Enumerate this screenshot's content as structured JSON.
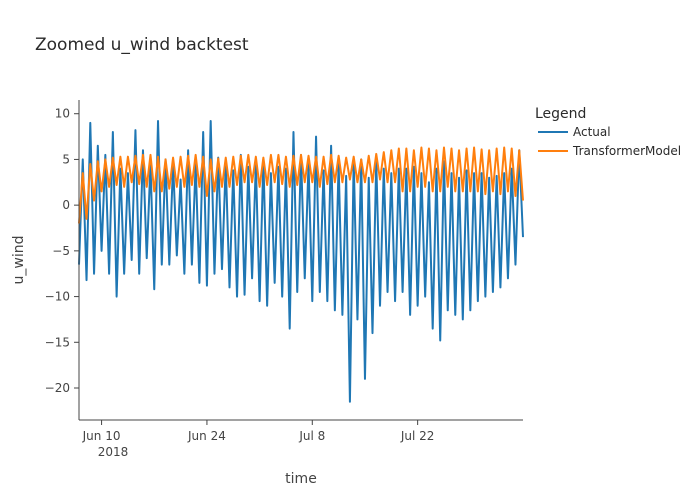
{
  "chart_data": {
    "type": "line",
    "title": "Zoomed u_wind backtest",
    "xlabel": "time",
    "ylabel": "u_wind",
    "x_start": "2018-06-07",
    "x_end": "2018-08-05",
    "x_tick_labels": [
      "Jun 10",
      "Jun 24",
      "Jul 8",
      "Jul 22"
    ],
    "x_tick_dates": [
      "2018-06-10",
      "2018-06-24",
      "2018-07-08",
      "2018-07-22"
    ],
    "x_year_label": "2018",
    "ylim": [
      -23.5,
      11.5
    ],
    "y_ticks": [
      10,
      5,
      0,
      -5,
      -10,
      -15,
      -20
    ],
    "y_tick_labels": [
      "10",
      "5",
      "0",
      "−5",
      "−10",
      "−15",
      "−20"
    ],
    "legend_title": "Legend",
    "legend_position": "top-right",
    "grid": false,
    "series": [
      {
        "name": "Actual",
        "color": "#1f77b4",
        "x": [
          "2018-06-07",
          "2018-06-08",
          "2018-06-09",
          "2018-06-10",
          "2018-06-11",
          "2018-06-12",
          "2018-06-13",
          "2018-06-14",
          "2018-06-15",
          "2018-06-16",
          "2018-06-17",
          "2018-06-18",
          "2018-06-19",
          "2018-06-20",
          "2018-06-21",
          "2018-06-22",
          "2018-06-23",
          "2018-06-24",
          "2018-06-25",
          "2018-06-26",
          "2018-06-27",
          "2018-06-28",
          "2018-06-29",
          "2018-06-30",
          "2018-07-01",
          "2018-07-02",
          "2018-07-03",
          "2018-07-04",
          "2018-07-05",
          "2018-07-06",
          "2018-07-07",
          "2018-07-08",
          "2018-07-09",
          "2018-07-10",
          "2018-07-11",
          "2018-07-12",
          "2018-07-13",
          "2018-07-14",
          "2018-07-15",
          "2018-07-16",
          "2018-07-17",
          "2018-07-18",
          "2018-07-19",
          "2018-07-20",
          "2018-07-21",
          "2018-07-22",
          "2018-07-23",
          "2018-07-24",
          "2018-07-25",
          "2018-07-26",
          "2018-07-27",
          "2018-07-28",
          "2018-07-29",
          "2018-07-30",
          "2018-07-31",
          "2018-08-01",
          "2018-08-02",
          "2018-08-03",
          "2018-08-04",
          "2018-08-05"
        ],
        "high": [
          5.0,
          9.0,
          6.5,
          5.5,
          8.0,
          4.0,
          3.5,
          8.2,
          6.0,
          4.5,
          9.2,
          5.0,
          4.5,
          2.8,
          6.0,
          4.5,
          8.0,
          9.2,
          5.2,
          4.5,
          3.8,
          5.5,
          4.2,
          4.5,
          5.0,
          3.5,
          4.2,
          4.0,
          8.0,
          5.5,
          4.5,
          7.5,
          3.8,
          6.5,
          4.5,
          3.2,
          5.0,
          5.0,
          3.0,
          4.8,
          4.0,
          3.5,
          4.0,
          4.0,
          4.2,
          3.5,
          2.5,
          4.0,
          4.8,
          3.5,
          3.0,
          3.8,
          3.5,
          3.5,
          3.0,
          3.2,
          3.5,
          4.0,
          6.0,
          8.5
        ],
        "low": [
          -6.5,
          -8.2,
          -7.5,
          -5.0,
          -7.5,
          -10.0,
          -7.5,
          -6.0,
          -7.5,
          -5.8,
          -9.2,
          -6.5,
          -6.5,
          -5.5,
          -7.5,
          -6.5,
          -8.5,
          -8.8,
          -7.5,
          -7.0,
          -9.0,
          -10.0,
          -9.8,
          -8.0,
          -10.5,
          -11.0,
          -8.5,
          -10.0,
          -13.5,
          -9.5,
          -8.0,
          -10.5,
          -9.5,
          -10.5,
          -11.5,
          -12.0,
          -21.5,
          -12.5,
          -19.0,
          -14.0,
          -11.0,
          -9.5,
          -10.5,
          -9.5,
          -12.0,
          -11.0,
          -10.0,
          -13.5,
          -14.8,
          -11.5,
          -12.0,
          -12.5,
          -11.5,
          -10.5,
          -10.0,
          -9.5,
          -9.0,
          -8.0,
          -6.5,
          -3.5
        ]
      },
      {
        "name": "TransformerModel",
        "color": "#ff7f0e",
        "x": [
          "2018-06-07",
          "2018-06-08",
          "2018-06-09",
          "2018-06-10",
          "2018-06-11",
          "2018-06-12",
          "2018-06-13",
          "2018-06-14",
          "2018-06-15",
          "2018-06-16",
          "2018-06-17",
          "2018-06-18",
          "2018-06-19",
          "2018-06-20",
          "2018-06-21",
          "2018-06-22",
          "2018-06-23",
          "2018-06-24",
          "2018-06-25",
          "2018-06-26",
          "2018-06-27",
          "2018-06-28",
          "2018-06-29",
          "2018-06-30",
          "2018-07-01",
          "2018-07-02",
          "2018-07-03",
          "2018-07-04",
          "2018-07-05",
          "2018-07-06",
          "2018-07-07",
          "2018-07-08",
          "2018-07-09",
          "2018-07-10",
          "2018-07-11",
          "2018-07-12",
          "2018-07-13",
          "2018-07-14",
          "2018-07-15",
          "2018-07-16",
          "2018-07-17",
          "2018-07-18",
          "2018-07-19",
          "2018-07-20",
          "2018-07-21",
          "2018-07-22",
          "2018-07-23",
          "2018-07-24",
          "2018-07-25",
          "2018-07-26",
          "2018-07-27",
          "2018-07-28",
          "2018-07-29",
          "2018-07-30",
          "2018-07-31",
          "2018-08-01",
          "2018-08-02",
          "2018-08-03",
          "2018-08-04",
          "2018-08-05"
        ],
        "high": [
          3.5,
          4.5,
          4.8,
          5.0,
          5.2,
          5.3,
          5.3,
          5.4,
          5.5,
          5.5,
          5.3,
          5.0,
          5.2,
          5.3,
          5.4,
          5.5,
          5.3,
          5.0,
          5.1,
          5.2,
          5.3,
          5.4,
          5.5,
          5.3,
          5.2,
          5.5,
          5.5,
          5.3,
          5.4,
          5.5,
          5.4,
          5.3,
          5.3,
          5.5,
          5.4,
          5.2,
          5.3,
          5.0,
          5.4,
          5.6,
          5.8,
          6.0,
          6.2,
          6.2,
          6.0,
          6.3,
          6.2,
          6.0,
          6.3,
          6.2,
          6.0,
          6.2,
          6.3,
          6.1,
          6.0,
          6.2,
          6.3,
          6.2,
          6.0,
          5.5
        ],
        "low": [
          -2.0,
          -1.5,
          0.5,
          1.5,
          2.0,
          2.2,
          2.0,
          2.5,
          2.3,
          2.0,
          1.5,
          1.5,
          1.8,
          2.0,
          2.0,
          2.2,
          2.0,
          1.0,
          1.5,
          2.0,
          2.0,
          2.2,
          2.5,
          2.5,
          2.0,
          2.2,
          2.5,
          2.3,
          2.0,
          2.2,
          2.5,
          2.5,
          2.0,
          2.3,
          2.5,
          2.5,
          2.8,
          2.5,
          2.5,
          2.5,
          2.8,
          2.5,
          2.5,
          1.5,
          1.5,
          2.0,
          2.0,
          1.5,
          1.5,
          2.0,
          1.5,
          1.5,
          1.5,
          1.5,
          1.2,
          1.5,
          1.2,
          1.5,
          1.0,
          0.5
        ]
      }
    ]
  }
}
